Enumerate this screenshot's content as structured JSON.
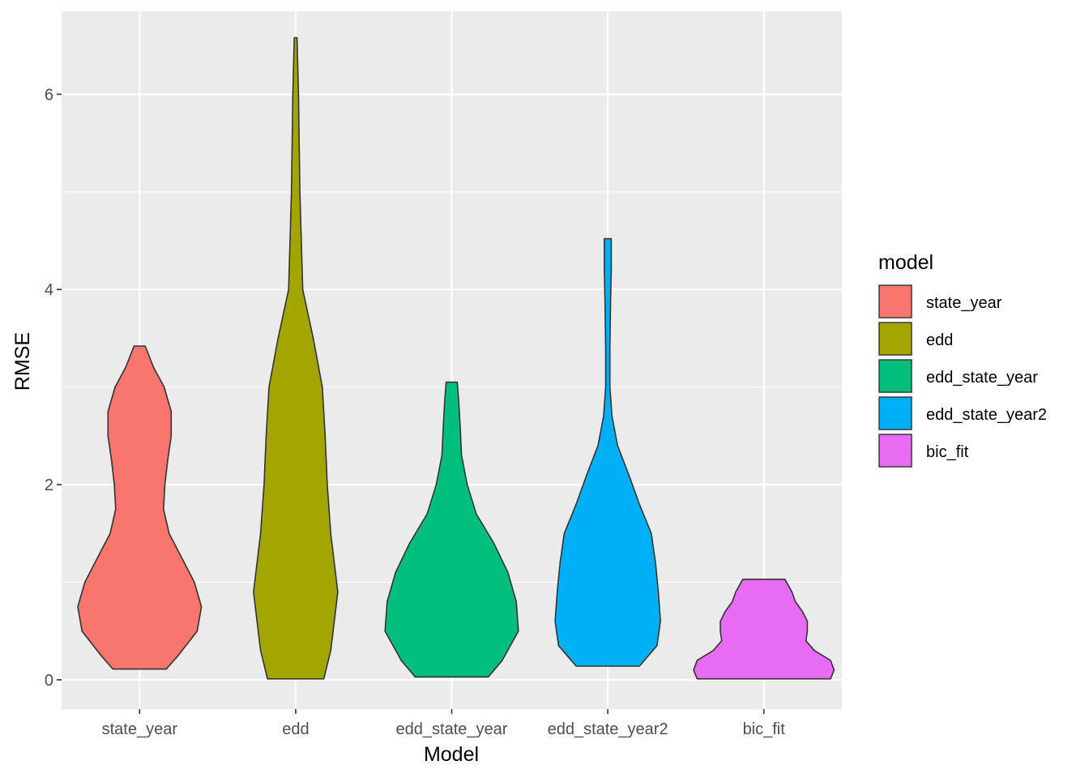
{
  "chart_data": {
    "type": "violin",
    "xlabel": "Model",
    "ylabel": "RMSE",
    "ylim": [
      -0.3,
      6.85
    ],
    "yticks": [
      0,
      2,
      4,
      6
    ],
    "ytick_labels": [
      "0",
      "2",
      "4",
      "6"
    ],
    "grid": true,
    "background": "#ebebeb",
    "categories": [
      "state_year",
      "edd",
      "edd_state_year",
      "edd_state_year2",
      "bic_fit"
    ],
    "legend": {
      "title": "model",
      "placement": "right",
      "entries": [
        "state_year",
        "edd",
        "edd_state_year",
        "edd_state_year2",
        "bic_fit"
      ]
    },
    "series": [
      {
        "category": "state_year",
        "color": "#F8766D",
        "min": 0.11,
        "max": 3.42,
        "density": [
          [
            0.11,
            0.38
          ],
          [
            0.25,
            0.55
          ],
          [
            0.5,
            0.82
          ],
          [
            0.75,
            0.88
          ],
          [
            1.0,
            0.78
          ],
          [
            1.25,
            0.6
          ],
          [
            1.5,
            0.42
          ],
          [
            1.75,
            0.34
          ],
          [
            2.0,
            0.36
          ],
          [
            2.25,
            0.4
          ],
          [
            2.5,
            0.45
          ],
          [
            2.75,
            0.45
          ],
          [
            3.0,
            0.35
          ],
          [
            3.2,
            0.2
          ],
          [
            3.42,
            0.08
          ]
        ]
      },
      {
        "category": "edd",
        "color": "#A3A500",
        "min": 0.01,
        "max": 6.58,
        "density": [
          [
            0.01,
            0.4
          ],
          [
            0.3,
            0.5
          ],
          [
            0.6,
            0.55
          ],
          [
            0.9,
            0.6
          ],
          [
            1.5,
            0.5
          ],
          [
            2.0,
            0.45
          ],
          [
            2.5,
            0.42
          ],
          [
            3.0,
            0.38
          ],
          [
            3.5,
            0.25
          ],
          [
            4.0,
            0.1
          ],
          [
            5.0,
            0.06
          ],
          [
            6.0,
            0.04
          ],
          [
            6.58,
            0.02
          ]
        ]
      },
      {
        "category": "edd_state_year",
        "color": "#00BF7D",
        "min": 0.03,
        "max": 3.05,
        "density": [
          [
            0.03,
            0.52
          ],
          [
            0.2,
            0.72
          ],
          [
            0.5,
            0.95
          ],
          [
            0.8,
            0.92
          ],
          [
            1.1,
            0.8
          ],
          [
            1.4,
            0.6
          ],
          [
            1.7,
            0.35
          ],
          [
            2.0,
            0.22
          ],
          [
            2.3,
            0.14
          ],
          [
            2.6,
            0.12
          ],
          [
            2.85,
            0.1
          ],
          [
            3.05,
            0.08
          ]
        ]
      },
      {
        "category": "edd_state_year2",
        "color": "#00B0F6",
        "min": 0.14,
        "max": 4.52,
        "density": [
          [
            0.14,
            0.45
          ],
          [
            0.35,
            0.7
          ],
          [
            0.6,
            0.75
          ],
          [
            0.9,
            0.72
          ],
          [
            1.2,
            0.68
          ],
          [
            1.5,
            0.62
          ],
          [
            1.8,
            0.45
          ],
          [
            2.1,
            0.3
          ],
          [
            2.4,
            0.14
          ],
          [
            2.7,
            0.06
          ],
          [
            3.0,
            0.03
          ],
          [
            3.4,
            0.03
          ],
          [
            3.9,
            0.04
          ],
          [
            4.2,
            0.05
          ],
          [
            4.52,
            0.05
          ]
        ]
      },
      {
        "category": "bic_fit",
        "color": "#E76BF3",
        "min": 0.01,
        "max": 1.03,
        "density": [
          [
            0.01,
            0.95
          ],
          [
            0.1,
            1.0
          ],
          [
            0.2,
            0.95
          ],
          [
            0.3,
            0.72
          ],
          [
            0.4,
            0.6
          ],
          [
            0.5,
            0.62
          ],
          [
            0.6,
            0.62
          ],
          [
            0.7,
            0.55
          ],
          [
            0.8,
            0.45
          ],
          [
            0.9,
            0.4
          ],
          [
            1.03,
            0.3
          ]
        ]
      }
    ]
  }
}
